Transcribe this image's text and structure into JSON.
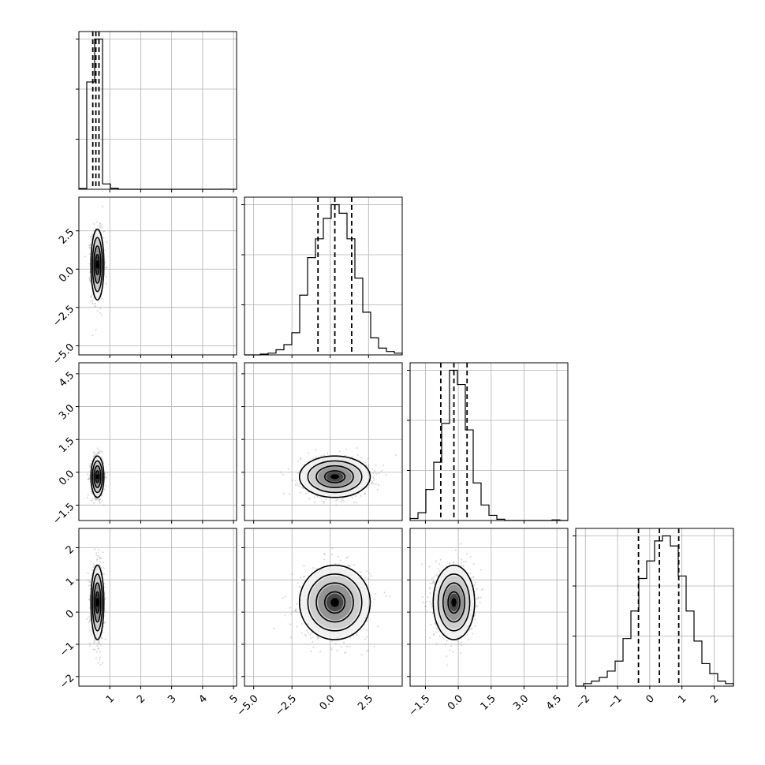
{
  "chart_data": {
    "type": "corner",
    "grid": true,
    "parameters": [
      {
        "range": [
          0.0,
          5.1
        ],
        "ticks": [
          1,
          2,
          3,
          4,
          5
        ],
        "tick_labels": [
          "1",
          "2",
          "3",
          "4",
          "5"
        ]
      },
      {
        "range": [
          -5.6,
          4.7
        ],
        "ticks": [
          -5.0,
          -2.5,
          0.0,
          2.5
        ],
        "tick_labels": [
          "−5.0",
          "−2.5",
          "0.0",
          "2.5"
        ]
      },
      {
        "range": [
          -2.2,
          5.0
        ],
        "ticks": [
          -1.5,
          0.0,
          1.5,
          3.0,
          4.5
        ],
        "tick_labels": [
          "−1.5",
          "0.0",
          "1.5",
          "3.0",
          "4.5"
        ]
      },
      {
        "range": [
          -2.3,
          2.6
        ],
        "ticks": [
          -2,
          -1,
          0,
          1,
          2
        ],
        "tick_labels": [
          "−2",
          "−1",
          "0",
          "1",
          "2"
        ]
      }
    ],
    "histograms": [
      {
        "bins": [
          0.0,
          0.255,
          0.51,
          0.765,
          1.02,
          1.275,
          1.53,
          1.785,
          2.04,
          2.295,
          2.55,
          2.805,
          3.06,
          3.315,
          3.57,
          3.825,
          4.08,
          4.335,
          4.59,
          4.845,
          5.1
        ],
        "counts": [
          0.03,
          4.0,
          5.6,
          0.2,
          0.04,
          0,
          0,
          0,
          0,
          0,
          0,
          0,
          0,
          0,
          0,
          0,
          0,
          0,
          0.005,
          0
        ],
        "quantiles": [
          0.45,
          0.55,
          0.65
        ]
      },
      {
        "bins": [
          -5.6,
          -5.085,
          -4.57,
          -4.055,
          -3.54,
          -3.025,
          -2.51,
          -1.995,
          -1.48,
          -0.965,
          -0.45,
          0.065,
          0.58,
          1.095,
          1.61,
          2.125,
          2.64,
          3.155,
          3.67,
          4.185,
          4.7
        ],
        "counts": [
          0,
          0,
          0.005,
          0.01,
          0.03,
          0.06,
          0.13,
          0.35,
          0.57,
          0.68,
          0.8,
          0.88,
          0.83,
          0.68,
          0.45,
          0.25,
          0.1,
          0.04,
          0.02,
          0.01
        ],
        "quantiles": [
          -0.8,
          0.3,
          1.4
        ]
      },
      {
        "bins": [
          -2.2,
          -1.84,
          -1.48,
          -1.12,
          -0.76,
          -0.4,
          -0.04,
          0.32,
          0.68,
          1.04,
          1.4,
          1.76,
          2.12,
          2.48,
          2.84,
          3.2,
          3.56,
          3.92,
          4.28,
          4.64,
          5.0
        ],
        "counts": [
          0.03,
          0.12,
          0.48,
          0.9,
          1.5,
          2.32,
          2.1,
          1.4,
          0.58,
          0.24,
          0.08,
          0.02,
          0,
          0,
          0,
          0,
          0,
          0,
          0.01,
          0
        ],
        "quantiles": [
          -0.8,
          -0.2,
          0.4
        ]
      },
      {
        "bins": [
          -2.3,
          -2.055,
          -1.81,
          -1.565,
          -1.32,
          -1.075,
          -0.83,
          -0.585,
          -0.34,
          -0.095,
          0.15,
          0.395,
          0.64,
          0.885,
          1.13,
          1.375,
          1.62,
          1.865,
          2.11,
          2.355,
          2.6
        ],
        "counts": [
          0,
          0.01,
          0.02,
          0.035,
          0.06,
          0.1,
          0.19,
          0.3,
          0.43,
          0.5,
          0.58,
          0.6,
          0.56,
          0.44,
          0.3,
          0.18,
          0.09,
          0.05,
          0.02,
          0.01
        ],
        "quantiles": [
          -0.35,
          0.3,
          0.9
        ]
      }
    ],
    "pairs": [
      {
        "x_param": 0,
        "y_param": 1,
        "mean": [
          0.6,
          0.3
        ],
        "sd": [
          0.1,
          1.1
        ],
        "rho": 0.0
      },
      {
        "x_param": 0,
        "y_param": 2,
        "mean": [
          0.6,
          -0.2
        ],
        "sd": [
          0.1,
          0.45
        ],
        "rho": 0.0
      },
      {
        "x_param": 1,
        "y_param": 2,
        "mean": [
          0.3,
          -0.2
        ],
        "sd": [
          1.1,
          0.45
        ],
        "rho": 0.0
      },
      {
        "x_param": 0,
        "y_param": 3,
        "mean": [
          0.6,
          0.3
        ],
        "sd": [
          0.1,
          0.55
        ],
        "rho": 0.0
      },
      {
        "x_param": 1,
        "y_param": 3,
        "mean": [
          0.3,
          0.3
        ],
        "sd": [
          1.1,
          0.55
        ],
        "rho": 0.0
      },
      {
        "x_param": 2,
        "y_param": 3,
        "mean": [
          -0.2,
          0.3
        ],
        "sd": [
          0.45,
          0.55
        ],
        "rho": 0.0
      }
    ],
    "contour_levels_sigma": [
      0.5,
      1.0,
      1.5,
      2.0
    ],
    "colors": {
      "line": "#000000",
      "points": "#9a9a9a",
      "grid": "#b0b0b0"
    }
  }
}
